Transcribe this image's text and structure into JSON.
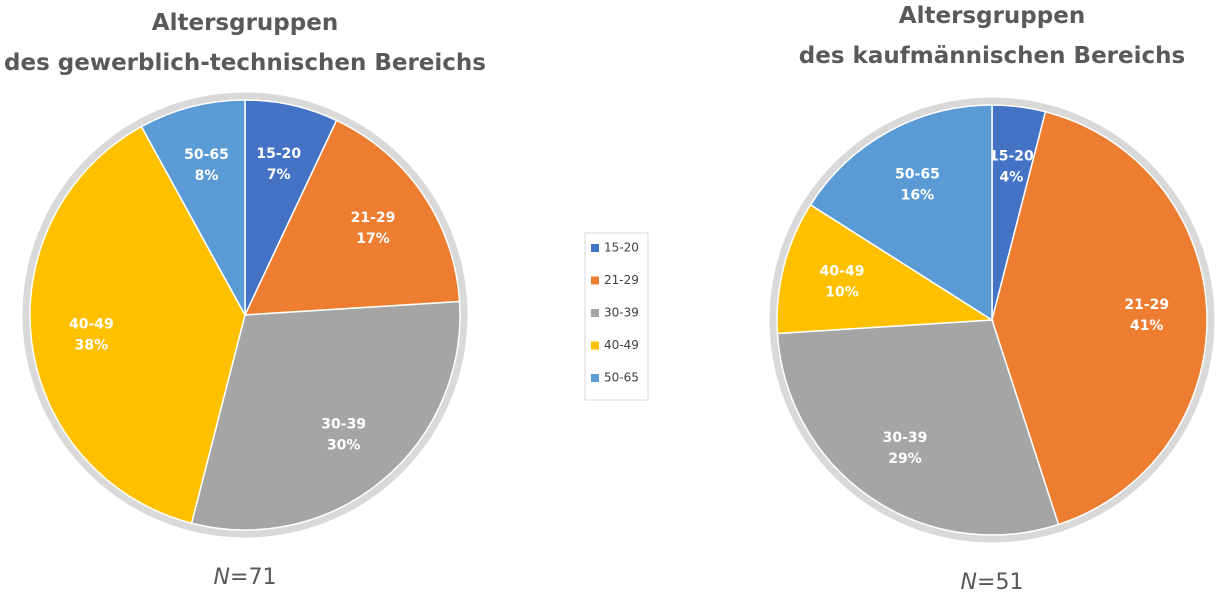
{
  "chart_data": [
    {
      "type": "pie",
      "title": [
        "Altersgruppen",
        "des gewerblich-technischen Bereichs"
      ],
      "categories": [
        "15-20",
        "21-29",
        "30-39",
        "40-49",
        "50-65"
      ],
      "values": [
        7,
        17,
        30,
        38,
        8
      ],
      "value_labels": [
        "7%",
        "17%",
        "30%",
        "38%",
        "8%"
      ],
      "colors": [
        "#4472c4",
        "#ed7d31",
        "#a5a5a5",
        "#ffc000",
        "#5b9bd5"
      ],
      "note": "N=71",
      "legend": "center"
    },
    {
      "type": "pie",
      "title": [
        "Altersgruppen",
        "des kaufmännischen Bereichs"
      ],
      "categories": [
        "15-20",
        "21-29",
        "30-39",
        "40-49",
        "50-65"
      ],
      "values": [
        4,
        41,
        29,
        10,
        16
      ],
      "value_labels": [
        "4%",
        "41%",
        "29%",
        "10%",
        "16%"
      ],
      "colors": [
        "#4472c4",
        "#ed7d31",
        "#a5a5a5",
        "#ffc000",
        "#5b9bd5"
      ],
      "note": "N=51"
    }
  ]
}
